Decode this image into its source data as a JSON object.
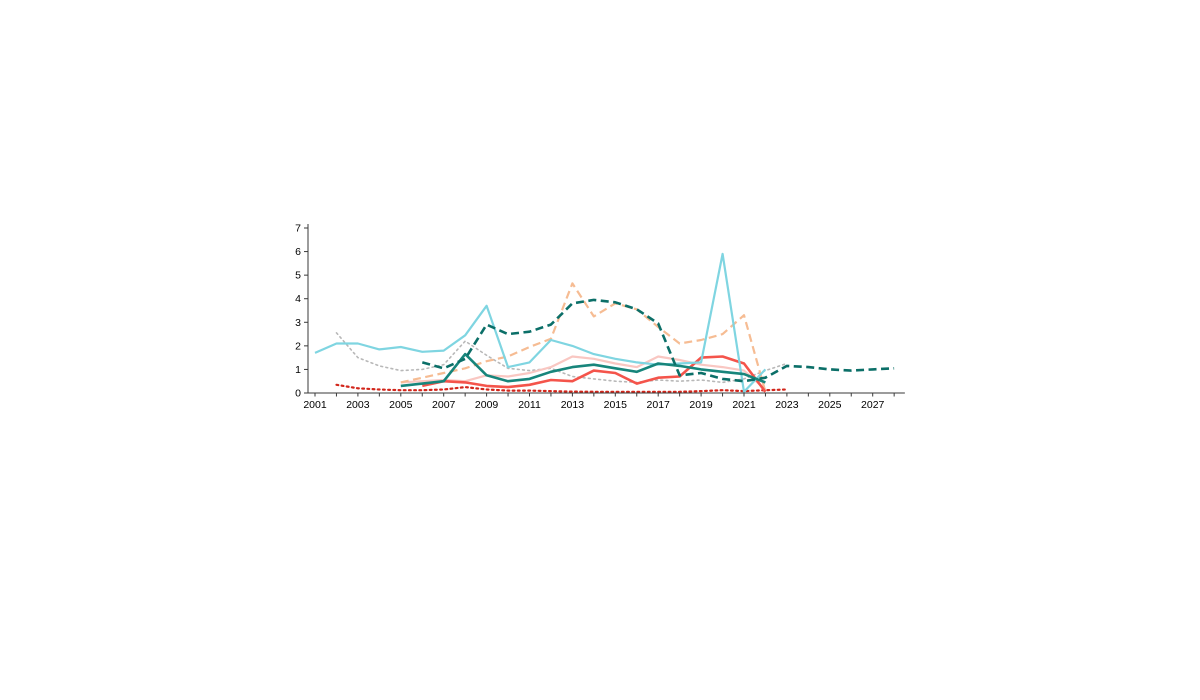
{
  "page": {
    "background_color": "#ffffff"
  },
  "chart_data": {
    "type": "line",
    "title": "",
    "xlabel": "",
    "ylabel": "",
    "grid": false,
    "legend": "none",
    "axis_color": "#3a3a3a",
    "y_axis": {
      "range": [
        0,
        7
      ],
      "ticks": [
        0,
        1,
        2,
        3,
        4,
        5,
        6,
        7
      ]
    },
    "x_axis": {
      "range": [
        2001,
        2028.5
      ],
      "minor_tick_years": [
        2001,
        2002,
        2003,
        2004,
        2005,
        2006,
        2007,
        2008,
        2009,
        2010,
        2011,
        2012,
        2013,
        2014,
        2015,
        2016,
        2017,
        2018,
        2019,
        2020,
        2021,
        2022,
        2023,
        2024,
        2025,
        2026,
        2027,
        2028
      ],
      "label_years": [
        2001,
        2003,
        2005,
        2007,
        2009,
        2011,
        2013,
        2015,
        2017,
        2019,
        2021,
        2023,
        2025,
        2027
      ]
    },
    "series": [
      {
        "name": "gray-dotted",
        "color": "#b8b8b8",
        "line_style": "dotted",
        "width": 1.6,
        "points": [
          [
            2002,
            2.55
          ],
          [
            2003,
            1.5
          ],
          [
            2004,
            1.15
          ],
          [
            2005,
            0.95
          ],
          [
            2006,
            1.0
          ],
          [
            2007,
            1.2
          ],
          [
            2008,
            2.2
          ],
          [
            2009,
            1.6
          ],
          [
            2010,
            1.05
          ],
          [
            2011,
            0.95
          ],
          [
            2012,
            1.05
          ],
          [
            2013,
            0.7
          ],
          [
            2014,
            0.6
          ],
          [
            2015,
            0.5
          ],
          [
            2016,
            0.45
          ],
          [
            2017,
            0.55
          ],
          [
            2018,
            0.5
          ],
          [
            2019,
            0.55
          ],
          [
            2020,
            0.45
          ],
          [
            2021,
            0.6
          ],
          [
            2022,
            0.95
          ],
          [
            2023,
            1.25
          ]
        ]
      },
      {
        "name": "dark-red-dotted",
        "color": "#d2261b",
        "line_style": "dotted",
        "width": 2.2,
        "points": [
          [
            2002,
            0.35
          ],
          [
            2003,
            0.2
          ],
          [
            2004,
            0.15
          ],
          [
            2005,
            0.12
          ],
          [
            2006,
            0.12
          ],
          [
            2007,
            0.15
          ],
          [
            2008,
            0.25
          ],
          [
            2009,
            0.15
          ],
          [
            2010,
            0.1
          ],
          [
            2011,
            0.1
          ],
          [
            2012,
            0.08
          ],
          [
            2013,
            0.06
          ],
          [
            2014,
            0.05
          ],
          [
            2015,
            0.05
          ],
          [
            2016,
            0.05
          ],
          [
            2017,
            0.05
          ],
          [
            2018,
            0.05
          ],
          [
            2019,
            0.08
          ],
          [
            2020,
            0.12
          ],
          [
            2021,
            0.08
          ],
          [
            2022,
            0.12
          ],
          [
            2023,
            0.15
          ]
        ]
      },
      {
        "name": "pink-solid",
        "color": "#f9c7c2",
        "line_style": "solid",
        "width": 2.2,
        "points": [
          [
            2005,
            0.45
          ],
          [
            2006,
            0.5
          ],
          [
            2007,
            0.55
          ],
          [
            2008,
            0.5
          ],
          [
            2009,
            0.75
          ],
          [
            2010,
            0.7
          ],
          [
            2011,
            0.85
          ],
          [
            2012,
            1.1
          ],
          [
            2013,
            1.55
          ],
          [
            2014,
            1.45
          ],
          [
            2015,
            1.25
          ],
          [
            2016,
            1.1
          ],
          [
            2017,
            1.55
          ],
          [
            2018,
            1.4
          ],
          [
            2019,
            1.2
          ],
          [
            2020,
            1.1
          ],
          [
            2021,
            0.95
          ],
          [
            2022,
            0.15
          ]
        ]
      },
      {
        "name": "peach-dashed",
        "color": "#f6bc93",
        "line_style": "dashed",
        "width": 2.2,
        "points": [
          [
            2005,
            0.45
          ],
          [
            2006,
            0.65
          ],
          [
            2007,
            0.85
          ],
          [
            2008,
            1.05
          ],
          [
            2009,
            1.35
          ],
          [
            2010,
            1.55
          ],
          [
            2011,
            1.95
          ],
          [
            2012,
            2.3
          ],
          [
            2013,
            4.65
          ],
          [
            2014,
            3.25
          ],
          [
            2015,
            3.8
          ],
          [
            2016,
            3.55
          ],
          [
            2017,
            2.8
          ],
          [
            2018,
            2.1
          ],
          [
            2019,
            2.25
          ],
          [
            2020,
            2.5
          ],
          [
            2021,
            3.3
          ],
          [
            2022,
            0.05
          ]
        ]
      },
      {
        "name": "red-solid",
        "color": "#f4544b",
        "line_style": "solid",
        "width": 2.6,
        "points": [
          [
            2006,
            0.3
          ],
          [
            2007,
            0.5
          ],
          [
            2008,
            0.45
          ],
          [
            2009,
            0.3
          ],
          [
            2010,
            0.25
          ],
          [
            2011,
            0.35
          ],
          [
            2012,
            0.55
          ],
          [
            2013,
            0.5
          ],
          [
            2014,
            0.95
          ],
          [
            2015,
            0.85
          ],
          [
            2016,
            0.4
          ],
          [
            2017,
            0.65
          ],
          [
            2018,
            0.7
          ],
          [
            2019,
            1.5
          ],
          [
            2020,
            1.55
          ],
          [
            2021,
            1.25
          ],
          [
            2022,
            0.05
          ]
        ]
      },
      {
        "name": "light-blue-solid",
        "color": "#7fd5e1",
        "line_style": "solid",
        "width": 2.2,
        "points": [
          [
            2001,
            1.7
          ],
          [
            2002,
            2.1
          ],
          [
            2003,
            2.1
          ],
          [
            2004,
            1.85
          ],
          [
            2005,
            1.95
          ],
          [
            2006,
            1.75
          ],
          [
            2007,
            1.8
          ],
          [
            2008,
            2.45
          ],
          [
            2009,
            3.7
          ],
          [
            2010,
            1.1
          ],
          [
            2011,
            1.3
          ],
          [
            2012,
            2.25
          ],
          [
            2013,
            2.0
          ],
          [
            2014,
            1.65
          ],
          [
            2015,
            1.45
          ],
          [
            2016,
            1.3
          ],
          [
            2017,
            1.2
          ],
          [
            2018,
            1.25
          ],
          [
            2019,
            1.3
          ],
          [
            2020,
            5.9
          ],
          [
            2021,
            0.05
          ],
          [
            2022,
            1.0
          ]
        ]
      },
      {
        "name": "teal-solid",
        "color": "#17857b",
        "line_style": "solid",
        "width": 2.6,
        "points": [
          [
            2005,
            0.3
          ],
          [
            2006,
            0.4
          ],
          [
            2007,
            0.5
          ],
          [
            2008,
            1.65
          ],
          [
            2009,
            0.75
          ],
          [
            2010,
            0.5
          ],
          [
            2011,
            0.6
          ],
          [
            2012,
            0.9
          ],
          [
            2013,
            1.1
          ],
          [
            2014,
            1.2
          ],
          [
            2015,
            1.05
          ],
          [
            2016,
            0.9
          ],
          [
            2017,
            1.25
          ],
          [
            2018,
            1.15
          ],
          [
            2019,
            1.0
          ],
          [
            2020,
            0.9
          ],
          [
            2021,
            0.8
          ],
          [
            2022,
            0.45
          ]
        ]
      },
      {
        "name": "teal-dashed",
        "color": "#0b6f68",
        "line_style": "dashed",
        "width": 2.6,
        "points": [
          [
            2006,
            1.3
          ],
          [
            2007,
            1.05
          ],
          [
            2008,
            1.45
          ],
          [
            2009,
            2.9
          ],
          [
            2010,
            2.5
          ],
          [
            2011,
            2.6
          ],
          [
            2012,
            2.9
          ],
          [
            2013,
            3.8
          ],
          [
            2014,
            3.95
          ],
          [
            2015,
            3.85
          ],
          [
            2016,
            3.55
          ],
          [
            2017,
            2.95
          ],
          [
            2018,
            0.75
          ],
          [
            2019,
            0.85
          ],
          [
            2020,
            0.6
          ],
          [
            2021,
            0.5
          ],
          [
            2022,
            0.65
          ],
          [
            2023,
            1.15
          ],
          [
            2024,
            1.1
          ],
          [
            2025,
            1.0
          ],
          [
            2026,
            0.95
          ],
          [
            2027,
            1.0
          ],
          [
            2028,
            1.05
          ]
        ]
      }
    ]
  }
}
